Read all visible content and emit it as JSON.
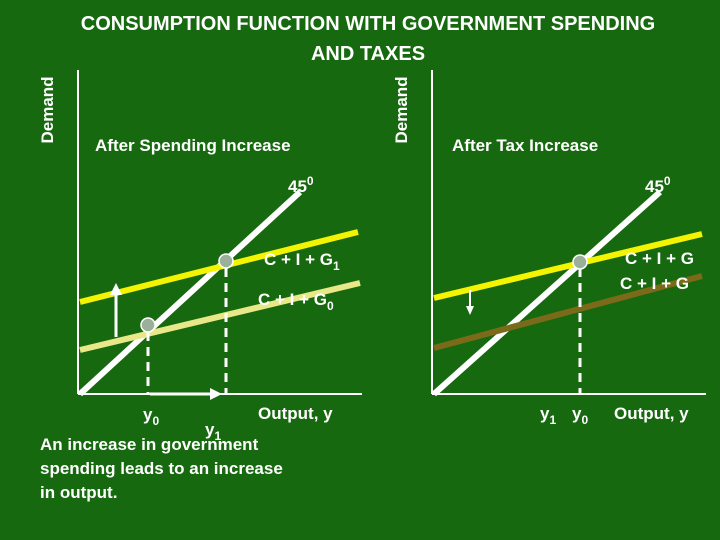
{
  "title": {
    "line1": "CONSUMPTION FUNCTION WITH GOVERNMENT SPENDING",
    "line2": "AND TAXES"
  },
  "left_panel": {
    "y_axis_label": "Demand",
    "heading": "After Spending Increase",
    "angle_label": {
      "text": "45",
      "superscript": "0"
    },
    "upper_line_label": {
      "text": "C + I + G",
      "subscript": "1"
    },
    "lower_line_label": {
      "text": "C + I + G",
      "subscript": "0"
    },
    "x_label_first": {
      "text": "y",
      "subscript": "0"
    },
    "x_label_second": {
      "text": "y",
      "subscript": "1"
    },
    "x_axis_label": "Output, y",
    "caption": [
      "An increase in government",
      "spending leads to an increase",
      "in output."
    ]
  },
  "right_panel": {
    "y_axis_label": "Demand",
    "heading": "After Tax Increase",
    "angle_label": {
      "text": "45",
      "superscript": "0"
    },
    "upper_line_label": "C + I + G",
    "lower_line_label": "C + I + G",
    "x_label_first": {
      "text": "y",
      "subscript": "1"
    },
    "x_label_second": {
      "text": "y",
      "subscript": "0"
    },
    "x_axis_label": "Output, y"
  }
}
